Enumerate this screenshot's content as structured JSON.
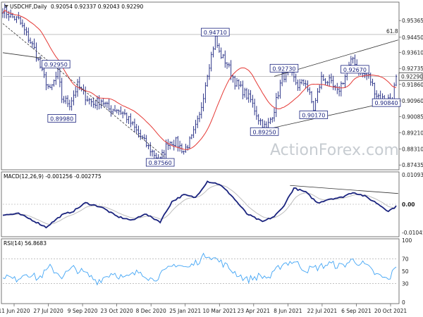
{
  "chart_data": {
    "type": "candlestick",
    "title": "USDCHF,Daily",
    "ohlc": "0.92054 0.92337 0.92043 0.92290",
    "last_price_label": "0.92290",
    "watermark": "ActionForex.com",
    "price_axis": {
      "min": 0.8725,
      "max": 0.963,
      "ticks": [
        "0.95365",
        "0.94450",
        "0.93610",
        "0.92735",
        "0.91860",
        "0.90960",
        "0.90085",
        "0.89210",
        "0.88310",
        "0.87435"
      ]
    },
    "x_axis": {
      "ticks": [
        "11 Jun 2020",
        "27 Jul 2020",
        "9 Sep 2020",
        "23 Oct 2020",
        "8 Dec 2020",
        "25 Jan 2021",
        "10 Mar 2021",
        "23 Apr 2021",
        "8 Jun 2021",
        "22 Jul 2021",
        "6 Sep 2021",
        "20 Oct 2021"
      ]
    },
    "fib_label": "61.8",
    "pivot_labels": [
      {
        "text": "0.94710",
        "index": 108,
        "price": 0.9471
      },
      {
        "text": "0.92950",
        "index": 27,
        "price": 0.9295
      },
      {
        "text": "0.89980",
        "index": 30,
        "price": 0.8998
      },
      {
        "text": "0.87560",
        "index": 80,
        "price": 0.8756
      },
      {
        "text": "0.92730",
        "index": 143,
        "price": 0.9273
      },
      {
        "text": "0.89250",
        "index": 133,
        "price": 0.8925
      },
      {
        "text": "0.90170",
        "index": 158,
        "price": 0.9017
      },
      {
        "text": "0.92670",
        "index": 179,
        "price": 0.9267
      },
      {
        "text": "0.90840",
        "index": 195,
        "price": 0.9084
      }
    ],
    "macd": {
      "title": "MACD(12,26,9) -0.001256 -0.002775",
      "min": -0.0115,
      "max": 0.0115,
      "ticks": [
        "0.010935",
        "0.00",
        "-0.010459"
      ],
      "keypoints": [
        [
          0,
          -0.004
        ],
        [
          8,
          -0.0035
        ],
        [
          14,
          -0.0055
        ],
        [
          22,
          -0.0085
        ],
        [
          30,
          -0.004
        ],
        [
          36,
          -0.0025
        ],
        [
          42,
          0.0005
        ],
        [
          50,
          -0.001
        ],
        [
          58,
          -0.0045
        ],
        [
          66,
          -0.006
        ],
        [
          72,
          -0.0035
        ],
        [
          80,
          -0.0065
        ],
        [
          86,
          0.001
        ],
        [
          92,
          0.0035
        ],
        [
          98,
          0.0025
        ],
        [
          104,
          0.0085
        ],
        [
          110,
          0.0075
        ],
        [
          116,
          0.0035
        ],
        [
          124,
          -0.0035
        ],
        [
          132,
          -0.0065
        ],
        [
          138,
          -0.0045
        ],
        [
          142,
          -0.0015
        ],
        [
          148,
          0.006
        ],
        [
          154,
          0.0045
        ],
        [
          160,
          0.0005
        ],
        [
          166,
          0.002
        ],
        [
          172,
          0.0025
        ],
        [
          178,
          0.0045
        ],
        [
          184,
          0.003
        ],
        [
          190,
          0.0005
        ],
        [
          196,
          -0.0025
        ],
        [
          200,
          -0.0008
        ]
      ]
    },
    "rsi": {
      "title": "RSI(14) 56.8683",
      "min": 0,
      "max": 100,
      "ticks": [
        "100",
        "70",
        "50",
        "30",
        "0"
      ],
      "levels": [
        70,
        30
      ],
      "keypoints": [
        [
          0,
          44
        ],
        [
          6,
          36
        ],
        [
          12,
          48
        ],
        [
          18,
          38
        ],
        [
          24,
          56
        ],
        [
          30,
          42
        ],
        [
          36,
          55
        ],
        [
          42,
          46
        ],
        [
          48,
          34
        ],
        [
          56,
          48
        ],
        [
          62,
          38
        ],
        [
          70,
          50
        ],
        [
          76,
          36
        ],
        [
          82,
          48
        ],
        [
          88,
          62
        ],
        [
          94,
          55
        ],
        [
          100,
          68
        ],
        [
          104,
          78
        ],
        [
          108,
          70
        ],
        [
          112,
          62
        ],
        [
          118,
          48
        ],
        [
          124,
          36
        ],
        [
          130,
          42
        ],
        [
          136,
          40
        ],
        [
          142,
          62
        ],
        [
          148,
          66
        ],
        [
          154,
          52
        ],
        [
          160,
          56
        ],
        [
          166,
          62
        ],
        [
          172,
          58
        ],
        [
          178,
          68
        ],
        [
          184,
          60
        ],
        [
          190,
          44
        ],
        [
          196,
          36
        ],
        [
          200,
          56.87
        ]
      ]
    },
    "price_keypoints": [
      [
        0,
        0.96
      ],
      [
        4,
        0.956
      ],
      [
        8,
        0.954
      ],
      [
        12,
        0.946
      ],
      [
        16,
        0.938
      ],
      [
        20,
        0.925
      ],
      [
        24,
        0.915
      ],
      [
        28,
        0.925
      ],
      [
        30,
        0.911
      ],
      [
        34,
        0.908
      ],
      [
        38,
        0.918
      ],
      [
        42,
        0.912
      ],
      [
        46,
        0.908
      ],
      [
        50,
        0.91
      ],
      [
        54,
        0.905
      ],
      [
        58,
        0.905
      ],
      [
        62,
        0.902
      ],
      [
        66,
        0.896
      ],
      [
        70,
        0.89
      ],
      [
        74,
        0.884
      ],
      [
        78,
        0.879
      ],
      [
        80,
        0.877
      ],
      [
        84,
        0.887
      ],
      [
        88,
        0.887
      ],
      [
        92,
        0.882
      ],
      [
        96,
        0.889
      ],
      [
        100,
        0.901
      ],
      [
        104,
        0.925
      ],
      [
        108,
        0.944
      ],
      [
        110,
        0.936
      ],
      [
        114,
        0.93
      ],
      [
        118,
        0.92
      ],
      [
        122,
        0.915
      ],
      [
        126,
        0.91
      ],
      [
        130,
        0.9
      ],
      [
        134,
        0.894
      ],
      [
        138,
        0.905
      ],
      [
        142,
        0.923
      ],
      [
        146,
        0.925
      ],
      [
        150,
        0.918
      ],
      [
        154,
        0.92
      ],
      [
        158,
        0.905
      ],
      [
        162,
        0.922
      ],
      [
        166,
        0.92
      ],
      [
        170,
        0.914
      ],
      [
        174,
        0.923
      ],
      [
        178,
        0.933
      ],
      [
        182,
        0.925
      ],
      [
        186,
        0.923
      ],
      [
        190,
        0.913
      ],
      [
        194,
        0.91
      ],
      [
        198,
        0.911
      ],
      [
        200,
        0.9229
      ]
    ],
    "trend_lines": [
      {
        "style": "dashed",
        "from": [
          0,
          0.952
        ],
        "to": [
          82,
          0.879
        ]
      },
      {
        "style": "solid",
        "from": [
          138,
          0.923
        ],
        "to": [
          201,
          0.943
        ]
      },
      {
        "style": "solid",
        "from": [
          128,
          0.8925
        ],
        "to": [
          201,
          0.91
        ]
      },
      {
        "style": "solid",
        "from": [
          0,
          0.936
        ],
        "to": [
          20,
          0.933
        ]
      }
    ],
    "horizontal_lines": [
      {
        "price": 0.946
      },
      {
        "price": 0.9229
      }
    ],
    "macd_trend_line": {
      "from": [
        146,
        0.007
      ],
      "to": [
        201,
        0.004
      ]
    }
  }
}
